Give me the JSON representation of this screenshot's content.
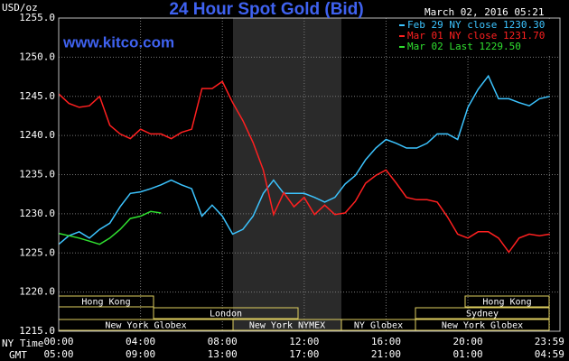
{
  "chart_data": {
    "type": "line",
    "title": "24 Hour Spot Gold (Bid)",
    "website": "www.kitco.com",
    "timestamp": "March 02, 2016 05:21",
    "y_unit": "USD/oz",
    "x_row_labels": [
      "NY Time",
      "GMT"
    ],
    "ylim": [
      1215,
      1255
    ],
    "yticks": [
      {
        "value": 1215,
        "label": "1215.0"
      },
      {
        "value": 1220,
        "label": "1220.0"
      },
      {
        "value": 1225,
        "label": "1225.0"
      },
      {
        "value": 1230,
        "label": "1230.0"
      },
      {
        "value": 1235,
        "label": "1235.0"
      },
      {
        "value": 1240,
        "label": "1240.0"
      },
      {
        "value": 1245,
        "label": "1245.0"
      },
      {
        "value": 1250,
        "label": "1250.0"
      },
      {
        "value": 1255,
        "label": "1255.0"
      }
    ],
    "xlim": [
      0,
      24.5
    ],
    "xticks": [
      {
        "value": 0,
        "label": "00:00"
      },
      {
        "value": 4,
        "label": "04:00"
      },
      {
        "value": 8,
        "label": "08:00"
      },
      {
        "value": 12,
        "label": "12:00"
      },
      {
        "value": 16,
        "label": "16:00"
      },
      {
        "value": 20,
        "label": "20:00"
      },
      {
        "value": 23.983,
        "label": "23:59"
      }
    ],
    "gmt_tick_labels": [
      "05:00",
      "09:00",
      "13:00",
      "17:00",
      "21:00",
      "01:00",
      "04:59"
    ],
    "grid": true,
    "sessions": [
      "Hong Kong",
      "London",
      "New York Globex",
      "New York NYMEX",
      "NY Globex",
      "Sydney",
      "Hong Kong",
      "New York Globex"
    ],
    "x": [
      0,
      0.5,
      1,
      1.5,
      2,
      2.5,
      3,
      3.5,
      4,
      4.5,
      5,
      5.5,
      6,
      6.5,
      7,
      7.5,
      8,
      8.5,
      9,
      9.5,
      10,
      10.5,
      11,
      11.5,
      12,
      12.5,
      13,
      13.5,
      14,
      14.5,
      15,
      15.5,
      16,
      16.5,
      17,
      17.5,
      18,
      18.5,
      19,
      19.5,
      20,
      20.5,
      21,
      21.5,
      22,
      22.5,
      23,
      23.5,
      24
    ],
    "series": [
      {
        "name": "Feb 29 NY close 1230.30",
        "color": "#3cc4ff",
        "values": [
          1226.1,
          1227.2,
          1227.7,
          1226.9,
          1228,
          1228.8,
          1230.9,
          1232.6,
          1232.8,
          1233.2,
          1233.7,
          1234.3,
          1233.7,
          1233.2,
          1229.7,
          1231.1,
          1229.7,
          1227.4,
          1228,
          1229.7,
          1232.6,
          1234.3,
          1232.6,
          1232.6,
          1232.6,
          1232.1,
          1231.5,
          1232.1,
          1233.8,
          1234.9,
          1236.9,
          1238.4,
          1239.5,
          1239,
          1238.4,
          1238.4,
          1239,
          1240.2,
          1240.2,
          1239.5,
          1243.6,
          1245.9,
          1247.6,
          1244.7,
          1244.7,
          1244.2,
          1243.8,
          1244.7,
          1245
        ]
      },
      {
        "name": "Mar 01 NY close 1231.70",
        "color": "#ff2020",
        "values": [
          1245.3,
          1244.1,
          1243.6,
          1243.8,
          1245,
          1241.3,
          1240.2,
          1239.6,
          1240.8,
          1240.2,
          1240.2,
          1239.6,
          1240.4,
          1240.8,
          1246,
          1246,
          1246.9,
          1244.2,
          1241.9,
          1239.1,
          1235.6,
          1229.9,
          1232.7,
          1230.9,
          1232.1,
          1229.9,
          1231.1,
          1229.9,
          1230.1,
          1231.6,
          1233.9,
          1234.9,
          1235.6,
          1233.9,
          1232.1,
          1231.8,
          1231.8,
          1231.5,
          1229.6,
          1227.4,
          1226.9,
          1227.7,
          1227.7,
          1226.9,
          1225.1,
          1226.9,
          1227.4,
          1227.2,
          1227.4
        ]
      },
      {
        "name": "Mar 02 Last 1229.50",
        "color": "#30e030",
        "values": [
          1227.5,
          1227.2,
          1226.9,
          1226.5,
          1226.1,
          1226.9,
          1228,
          1229.4,
          1229.7,
          1230.3,
          1230.1,
          null,
          null,
          null,
          null,
          null,
          null,
          null,
          null,
          null,
          null,
          null,
          null,
          null,
          null,
          null,
          null,
          null,
          null,
          null,
          null,
          null,
          null,
          null,
          null,
          null,
          null,
          null,
          null,
          null,
          null,
          null,
          null,
          null,
          null,
          null,
          null,
          null,
          null
        ]
      }
    ]
  }
}
